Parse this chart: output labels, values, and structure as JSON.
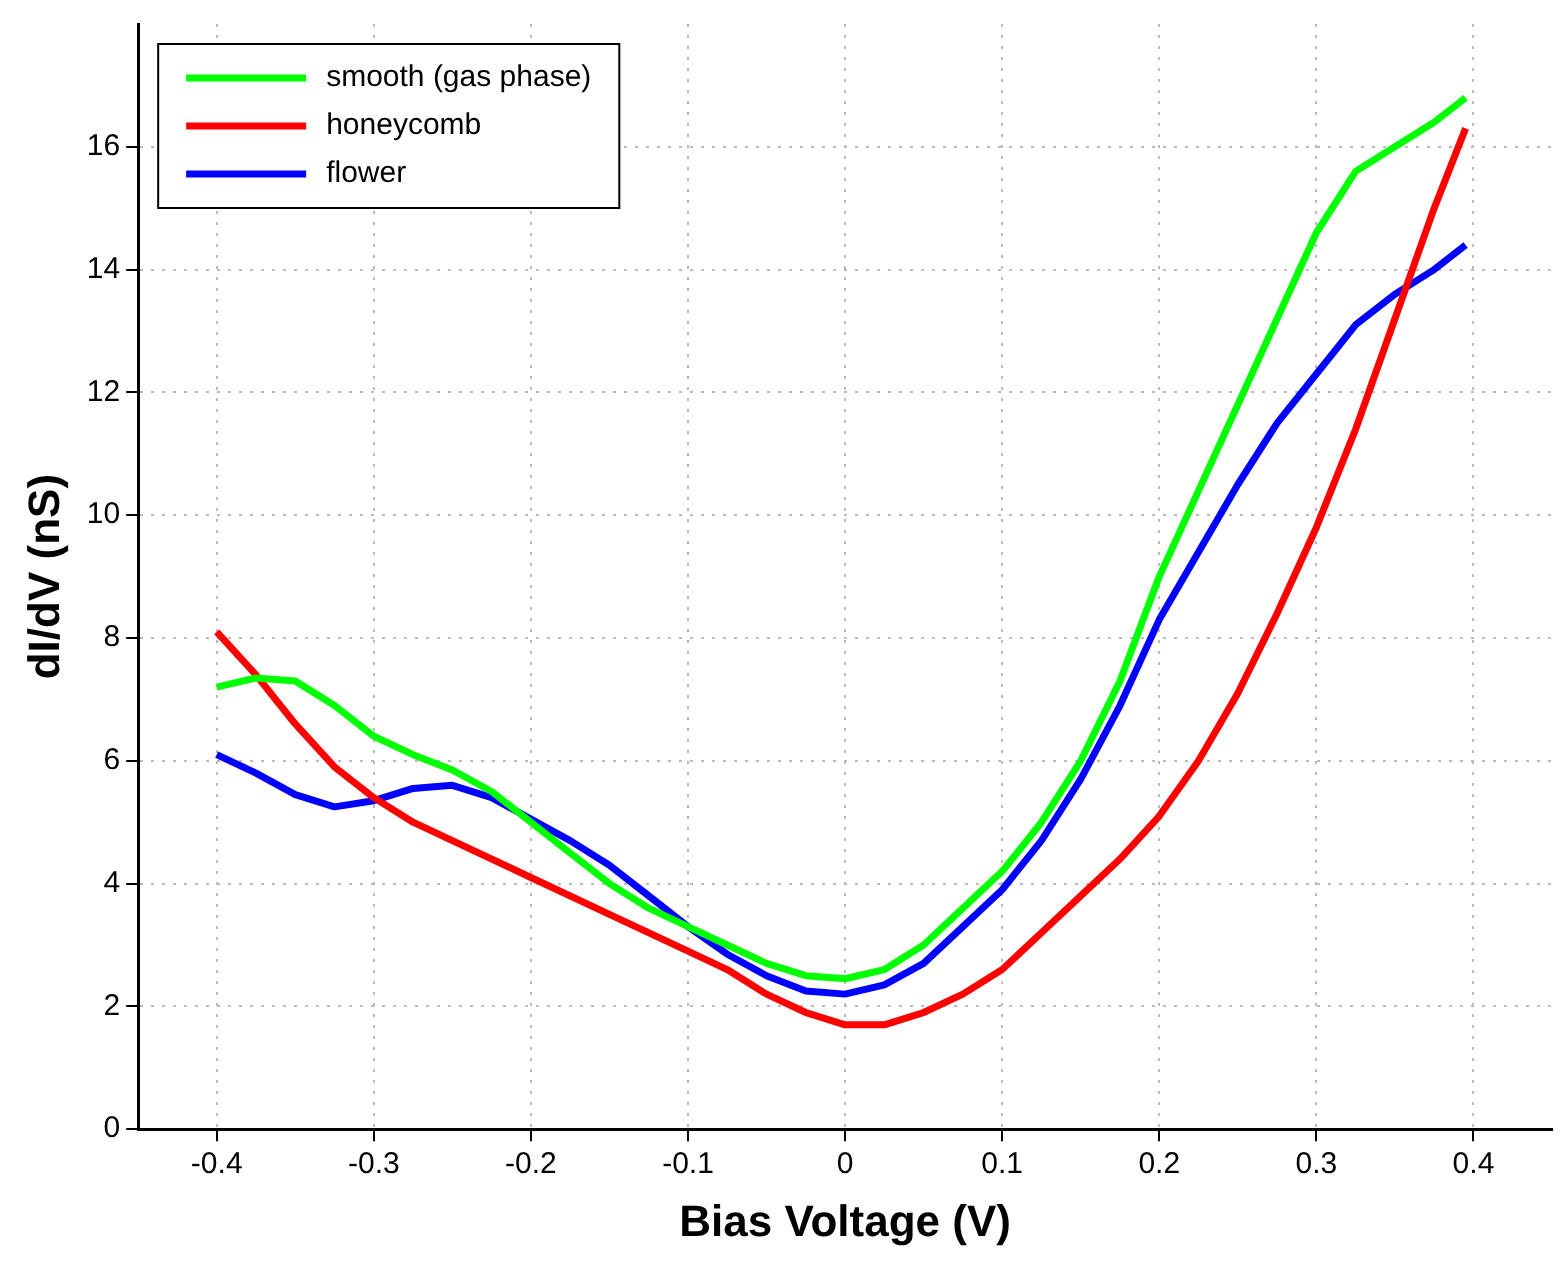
{
  "chart_data": {
    "type": "line",
    "xlabel": "Bias Voltage (V)",
    "ylabel": "dI/dV (nS)",
    "xlim": [
      -0.45,
      0.45
    ],
    "xticks": [
      -0.4,
      -0.3,
      -0.2,
      -0.1,
      0,
      0.1,
      0.2,
      0.3,
      0.4
    ],
    "ylim": [
      0,
      18
    ],
    "yticks": [
      0,
      2,
      4,
      6,
      8,
      10,
      12,
      14,
      16
    ],
    "grid": true,
    "legend": "top left",
    "marker": "none",
    "line_style": "solid",
    "series": [
      {
        "name": "smooth (gas phase)",
        "color": "#00ff00",
        "x": [
          -0.4,
          -0.375,
          -0.35,
          -0.325,
          -0.3,
          -0.275,
          -0.25,
          -0.225,
          -0.2,
          -0.175,
          -0.15,
          -0.125,
          -0.1,
          -0.075,
          -0.05,
          -0.025,
          0,
          0.025,
          0.05,
          0.075,
          0.1,
          0.125,
          0.15,
          0.175,
          0.2,
          0.225,
          0.25,
          0.275,
          0.3,
          0.325,
          0.35,
          0.375,
          0.395
        ],
        "values": [
          7.2,
          7.35,
          7.3,
          6.9,
          6.4,
          6.1,
          5.85,
          5.5,
          5.0,
          4.5,
          4.0,
          3.6,
          3.3,
          3.0,
          2.7,
          2.5,
          2.45,
          2.6,
          3.0,
          3.6,
          4.2,
          5.0,
          6.0,
          7.3,
          9.0,
          10.4,
          11.8,
          13.2,
          14.6,
          15.6,
          16.0,
          16.4,
          16.8
        ]
      },
      {
        "name": "honeycomb",
        "color": "#ff0000",
        "x": [
          -0.4,
          -0.375,
          -0.35,
          -0.325,
          -0.3,
          -0.275,
          -0.25,
          -0.2,
          -0.15,
          -0.1,
          -0.075,
          -0.05,
          -0.025,
          0,
          0.025,
          0.05,
          0.075,
          0.1,
          0.125,
          0.15,
          0.175,
          0.2,
          0.225,
          0.25,
          0.275,
          0.3,
          0.325,
          0.35,
          0.375,
          0.395
        ],
        "values": [
          8.1,
          7.4,
          6.6,
          5.9,
          5.4,
          5.0,
          4.7,
          4.1,
          3.5,
          2.9,
          2.6,
          2.2,
          1.9,
          1.7,
          1.7,
          1.9,
          2.2,
          2.6,
          3.2,
          3.8,
          4.4,
          5.1,
          6.0,
          7.1,
          8.4,
          9.8,
          11.4,
          13.2,
          15.0,
          16.3
        ]
      },
      {
        "name": "flower",
        "color": "#0000ff",
        "x": [
          -0.4,
          -0.375,
          -0.35,
          -0.325,
          -0.3,
          -0.275,
          -0.25,
          -0.225,
          -0.2,
          -0.175,
          -0.15,
          -0.125,
          -0.1,
          -0.075,
          -0.05,
          -0.025,
          0,
          0.025,
          0.05,
          0.075,
          0.1,
          0.125,
          0.15,
          0.175,
          0.2,
          0.225,
          0.25,
          0.275,
          0.3,
          0.325,
          0.35,
          0.375,
          0.395
        ],
        "values": [
          6.1,
          5.8,
          5.45,
          5.25,
          5.35,
          5.55,
          5.6,
          5.4,
          5.05,
          4.7,
          4.3,
          3.8,
          3.3,
          2.85,
          2.5,
          2.25,
          2.2,
          2.35,
          2.7,
          3.3,
          3.9,
          4.7,
          5.7,
          6.9,
          8.3,
          9.4,
          10.5,
          11.5,
          12.3,
          13.1,
          13.6,
          14.0,
          14.4
        ]
      }
    ]
  }
}
